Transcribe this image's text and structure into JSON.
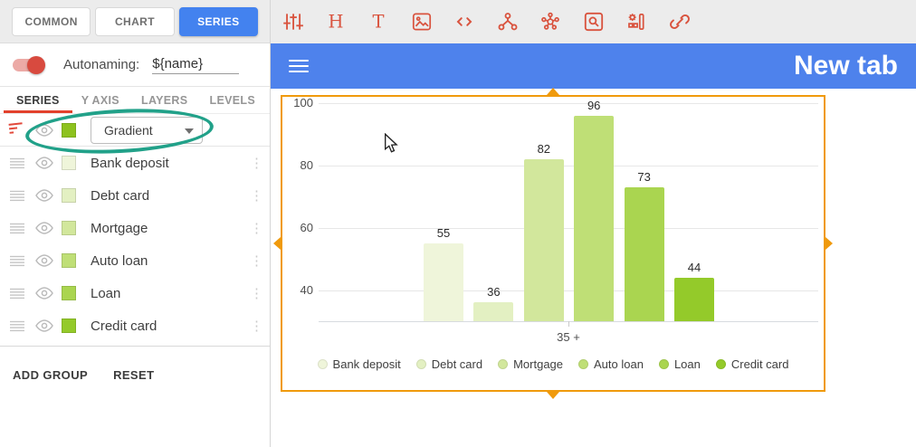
{
  "sidebar": {
    "tabs": [
      {
        "label": "COMMON",
        "active": false
      },
      {
        "label": "CHART",
        "active": false
      },
      {
        "label": "SERIES",
        "active": true
      }
    ],
    "autonaming": {
      "label": "Autonaming:",
      "value": "${name}",
      "enabled": true
    },
    "subtabs": [
      {
        "label": "SERIES",
        "active": true
      },
      {
        "label": "Y AXIS",
        "active": false
      },
      {
        "label": "LAYERS",
        "active": false
      },
      {
        "label": "LEVELS",
        "active": false
      }
    ],
    "palette_dropdown": {
      "value": "Gradient",
      "swatch_color": "#8dc21e"
    },
    "series": [
      {
        "name": "Bank deposit",
        "color": "#eff5da"
      },
      {
        "name": "Debt card",
        "color": "#e3f0c2"
      },
      {
        "name": "Mortgage",
        "color": "#d2e79c"
      },
      {
        "name": "Auto loan",
        "color": "#bfdf76"
      },
      {
        "name": "Loan",
        "color": "#aad550"
      },
      {
        "name": "Credit card",
        "color": "#94ca2a"
      }
    ],
    "footer": {
      "add_group": "ADD GROUP",
      "reset": "RESET"
    }
  },
  "toolbar": {
    "icon_color": "#d9533e",
    "icons": [
      "settings-sliders",
      "heading",
      "text",
      "image",
      "code",
      "hierarchy",
      "cluster",
      "zoom",
      "widgets",
      "link"
    ]
  },
  "header": {
    "title": "New tab",
    "background_color": "#4e82ec"
  },
  "annotation": {
    "highlight_color": "#21a189"
  },
  "selection": {
    "border_color": "#f09a0c"
  },
  "chart_data": {
    "type": "bar",
    "categories": [
      "Bank deposit",
      "Debt card",
      "Mortgage",
      "Auto loan",
      "Loan",
      "Credit card"
    ],
    "values": [
      55,
      36,
      82,
      96,
      73,
      44
    ],
    "colors": [
      "#eff5da",
      "#e3f0c2",
      "#d2e79c",
      "#bfdf76",
      "#aad550",
      "#94ca2a"
    ],
    "bar_labels": [
      55,
      36,
      82,
      96,
      73,
      44
    ],
    "x_tick_label": "35 +",
    "y_ticks": [
      40,
      60,
      80,
      100
    ],
    "ylim": [
      30,
      100
    ],
    "grid": true,
    "legend_position": "bottom",
    "title": "",
    "xlabel": "",
    "ylabel": ""
  }
}
